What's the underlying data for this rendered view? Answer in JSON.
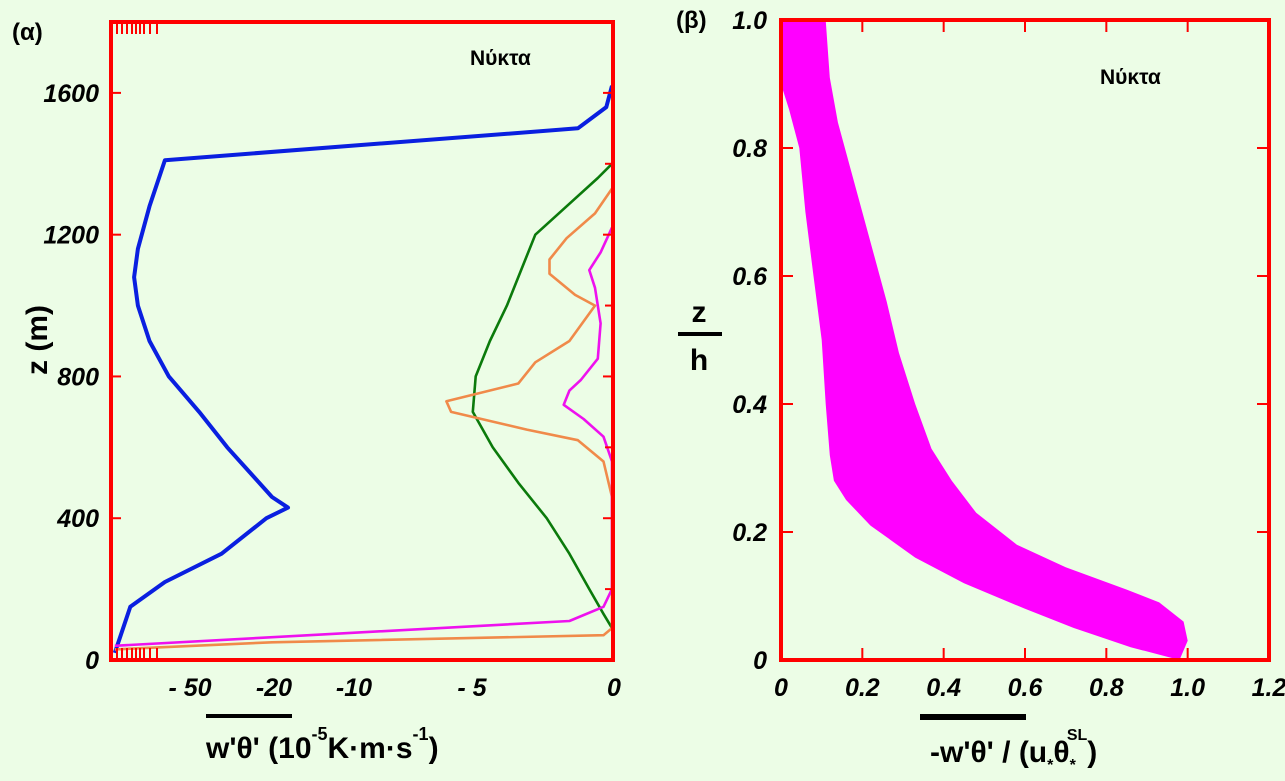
{
  "chart_data": [
    {
      "panel_label": "(α)",
      "type": "line",
      "annotation": "Νύκτα",
      "xlabel": "w'θ' (10",
      "xlabel_exp": "-5",
      "xlabel_mid": "K·m·s",
      "xlabel_exp2": "-1",
      "xlabel_end": ")",
      "ylabel": "z (m)",
      "ylim": [
        0,
        1800
      ],
      "xlim": [
        -70,
        0
      ],
      "x_scale": "piecewise",
      "x_ticks": [
        -50,
        -20,
        -10,
        -5,
        0
      ],
      "x_tick_labels": [
        "- 50",
        "-20",
        "-10",
        "- 5",
        "0"
      ],
      "y_ticks": [
        0,
        400,
        800,
        1200,
        1600
      ],
      "y_tick_labels": [
        "0",
        "400",
        "800",
        "1200",
        "1600"
      ],
      "series": [
        {
          "color": "#0a1fe0",
          "points": [
            [
              -69,
              20
            ],
            [
              -65,
              150
            ],
            [
              -56,
              220
            ],
            [
              -38,
              300
            ],
            [
              -22,
              400
            ],
            [
              -18,
              430
            ],
            [
              -20,
              460
            ],
            [
              -28,
              530
            ],
            [
              -36,
              600
            ],
            [
              -46,
              700
            ],
            [
              -55,
              800
            ],
            [
              -60,
              900
            ],
            [
              -63,
              1000
            ],
            [
              -64,
              1080
            ],
            [
              -63,
              1160
            ],
            [
              -60,
              1280
            ],
            [
              -56,
              1410
            ],
            [
              -1.2,
              1500
            ],
            [
              -0.2,
              1560
            ],
            [
              0,
              1620
            ]
          ]
        },
        {
          "color": "#0b7a0b",
          "points": [
            [
              0,
              90
            ],
            [
              -0.3,
              130
            ],
            [
              -0.8,
              200
            ],
            [
              -1.5,
              300
            ],
            [
              -2.3,
              400
            ],
            [
              -3.3,
              500
            ],
            [
              -4.2,
              600
            ],
            [
              -4.9,
              700
            ],
            [
              -4.8,
              800
            ],
            [
              -4.3,
              900
            ],
            [
              -3.7,
              1000
            ],
            [
              -3.2,
              1100
            ],
            [
              -2.7,
              1200
            ],
            [
              -1.6,
              1280
            ],
            [
              -0.5,
              1360
            ],
            [
              0,
              1400
            ]
          ]
        },
        {
          "color": "#f08a4a",
          "points": [
            [
              -69,
              30
            ],
            [
              -20,
              50
            ],
            [
              -0.3,
              70
            ],
            [
              0,
              90
            ],
            [
              0,
              460
            ],
            [
              -0.3,
              560
            ],
            [
              -1.2,
              620
            ],
            [
              -3,
              650
            ],
            [
              -5.8,
              700
            ],
            [
              -6,
              730
            ],
            [
              -3.3,
              780
            ],
            [
              -2.7,
              840
            ],
            [
              -1.5,
              900
            ],
            [
              -0.6,
              1000
            ],
            [
              -1.3,
              1030
            ],
            [
              -2.2,
              1090
            ],
            [
              -2.2,
              1130
            ],
            [
              -1.6,
              1190
            ],
            [
              -0.6,
              1260
            ],
            [
              0,
              1330
            ]
          ]
        },
        {
          "color": "#ee11ee",
          "points": [
            [
              -69,
              40
            ],
            [
              -1.5,
              110
            ],
            [
              -0.3,
              150
            ],
            [
              0,
              200
            ],
            [
              0,
              560
            ],
            [
              -0.3,
              630
            ],
            [
              -1,
              680
            ],
            [
              -1.7,
              720
            ],
            [
              -1.5,
              760
            ],
            [
              -1.1,
              790
            ],
            [
              -0.5,
              850
            ],
            [
              -0.4,
              950
            ],
            [
              -0.6,
              1050
            ],
            [
              -0.8,
              1100
            ],
            [
              -0.4,
              1150
            ],
            [
              0,
              1220
            ]
          ]
        }
      ]
    },
    {
      "panel_label": "(β)",
      "type": "area",
      "annotation": "Νύκτα",
      "xlabel": "-w'θ' / (u",
      "xlabel_sub1": "*",
      "xlabel_theta": "θ",
      "xlabel_sub2": "*",
      "xlabel_sup": "SL",
      "xlabel_end": ")",
      "ylabel_num": "z",
      "ylabel_den": "h",
      "xlim": [
        0,
        1.2
      ],
      "ylim": [
        0,
        1.0
      ],
      "x_ticks": [
        0,
        0.2,
        0.4,
        0.6,
        0.8,
        1.0,
        1.2
      ],
      "x_tick_labels": [
        "0",
        "0.2",
        "0.4",
        "0.6",
        "0.8",
        "1.0",
        "1.2"
      ],
      "y_ticks": [
        0,
        0.2,
        0.4,
        0.6,
        0.8,
        1.0
      ],
      "y_tick_labels": [
        "0",
        "0.2",
        "0.4",
        "0.6",
        "0.8",
        "1.0"
      ],
      "band_color": "#ff00ff",
      "band": {
        "upper": [
          [
            0.98,
            0
          ],
          [
            1.0,
            0.03
          ],
          [
            0.99,
            0.06
          ],
          [
            0.93,
            0.09
          ],
          [
            0.85,
            0.11
          ],
          [
            0.7,
            0.145
          ],
          [
            0.58,
            0.18
          ],
          [
            0.48,
            0.23
          ],
          [
            0.42,
            0.28
          ],
          [
            0.37,
            0.33
          ],
          [
            0.33,
            0.4
          ],
          [
            0.29,
            0.48
          ],
          [
            0.26,
            0.56
          ],
          [
            0.23,
            0.63
          ],
          [
            0.2,
            0.7
          ],
          [
            0.17,
            0.77
          ],
          [
            0.14,
            0.84
          ],
          [
            0.12,
            0.91
          ],
          [
            0.11,
            1.0
          ]
        ],
        "lower": [
          [
            0.98,
            0
          ],
          [
            0.86,
            0.02
          ],
          [
            0.72,
            0.05
          ],
          [
            0.6,
            0.08
          ],
          [
            0.45,
            0.12
          ],
          [
            0.33,
            0.16
          ],
          [
            0.22,
            0.21
          ],
          [
            0.16,
            0.25
          ],
          [
            0.13,
            0.28
          ],
          [
            0.12,
            0.32
          ],
          [
            0.11,
            0.4
          ],
          [
            0.1,
            0.5
          ],
          [
            0.08,
            0.6
          ],
          [
            0.06,
            0.7
          ],
          [
            0.045,
            0.8
          ],
          [
            0.02,
            0.86
          ],
          [
            0,
            0.9
          ],
          [
            0,
            1.0
          ]
        ]
      }
    }
  ]
}
